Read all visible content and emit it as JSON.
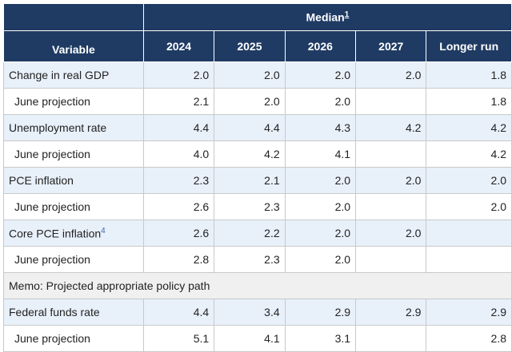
{
  "header": {
    "median_label": "Median",
    "median_footnote": "1",
    "variable_label": "Variable",
    "years": [
      "2024",
      "2025",
      "2026",
      "2027",
      "Longer run"
    ]
  },
  "rows": [
    {
      "label": "Change in real GDP",
      "values": [
        "2.0",
        "2.0",
        "2.0",
        "2.0",
        "1.8"
      ]
    },
    {
      "label": "June projection",
      "values": [
        "2.1",
        "2.0",
        "2.0",
        "",
        "1.8"
      ]
    },
    {
      "label": "Unemployment rate",
      "values": [
        "4.4",
        "4.4",
        "4.3",
        "4.2",
        "4.2"
      ]
    },
    {
      "label": "June projection",
      "values": [
        "4.0",
        "4.2",
        "4.1",
        "",
        "4.2"
      ]
    },
    {
      "label": "PCE inflation",
      "values": [
        "2.3",
        "2.1",
        "2.0",
        "2.0",
        "2.0"
      ]
    },
    {
      "label": "June projection",
      "values": [
        "2.6",
        "2.3",
        "2.0",
        "",
        "2.0"
      ]
    },
    {
      "label": "Core PCE inflation",
      "footnote": "4",
      "values": [
        "2.6",
        "2.2",
        "2.0",
        "2.0",
        ""
      ]
    },
    {
      "label": "June projection",
      "values": [
        "2.8",
        "2.3",
        "2.0",
        "",
        ""
      ]
    }
  ],
  "memo": "Memo: Projected appropriate policy path",
  "policy_rows": [
    {
      "label": "Federal funds rate",
      "values": [
        "4.4",
        "3.4",
        "2.9",
        "2.9",
        "2.9"
      ]
    },
    {
      "label": "June projection",
      "values": [
        "5.1",
        "4.1",
        "3.1",
        "",
        "2.8"
      ]
    }
  ]
}
